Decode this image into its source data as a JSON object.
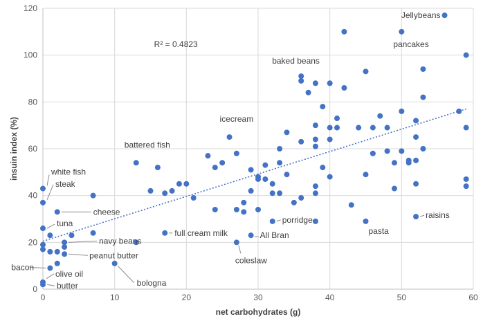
{
  "chart_data": {
    "type": "scatter",
    "xlabel": "net carbohydrates (g)",
    "ylabel": "insuin index (%)",
    "xlim": [
      0,
      60
    ],
    "ylim": [
      0,
      120
    ],
    "x_ticks": [
      "0",
      "10",
      "20",
      "30",
      "40",
      "50",
      "60"
    ],
    "y_ticks": [
      "0",
      "20",
      "40",
      "60",
      "80",
      "100",
      "120"
    ],
    "grid": "horizontal and vertical",
    "legend": "none",
    "marker_color": "#4472c4",
    "trendline": {
      "type": "linear",
      "color": "#4472c4",
      "x_range": [
        0,
        59
      ],
      "y_start": 20.5,
      "y_end": 77,
      "r_squared_label": "R² = 0.4823"
    },
    "points": [
      {
        "x": 56,
        "y": 117,
        "label": "Jellybeans"
      },
      {
        "x": 42,
        "y": 110
      },
      {
        "x": 50,
        "y": 110,
        "label": "pancakes"
      },
      {
        "x": 59,
        "y": 100
      },
      {
        "x": 53,
        "y": 94
      },
      {
        "x": 45,
        "y": 93
      },
      {
        "x": 36,
        "y": 91,
        "label": "baked beans"
      },
      {
        "x": 36,
        "y": 89
      },
      {
        "x": 38,
        "y": 88
      },
      {
        "x": 40,
        "y": 88
      },
      {
        "x": 42,
        "y": 86
      },
      {
        "x": 37,
        "y": 84
      },
      {
        "x": 53,
        "y": 82
      },
      {
        "x": 39,
        "y": 78
      },
      {
        "x": 50,
        "y": 76
      },
      {
        "x": 58,
        "y": 76
      },
      {
        "x": 47,
        "y": 74
      },
      {
        "x": 41,
        "y": 73
      },
      {
        "x": 52,
        "y": 72
      },
      {
        "x": 38,
        "y": 70
      },
      {
        "x": 40,
        "y": 69
      },
      {
        "x": 41,
        "y": 69
      },
      {
        "x": 44,
        "y": 69
      },
      {
        "x": 46,
        "y": 69
      },
      {
        "x": 48,
        "y": 69
      },
      {
        "x": 59,
        "y": 69
      },
      {
        "x": 34,
        "y": 67
      },
      {
        "x": 26,
        "y": 65,
        "label": "icecream"
      },
      {
        "x": 52,
        "y": 65
      },
      {
        "x": 38,
        "y": 64
      },
      {
        "x": 40,
        "y": 64
      },
      {
        "x": 36,
        "y": 63
      },
      {
        "x": 38,
        "y": 61
      },
      {
        "x": 33,
        "y": 60
      },
      {
        "x": 53,
        "y": 60
      },
      {
        "x": 48,
        "y": 59
      },
      {
        "x": 50,
        "y": 59
      },
      {
        "x": 27,
        "y": 58
      },
      {
        "x": 46,
        "y": 58
      },
      {
        "x": 23,
        "y": 57
      },
      {
        "x": 49,
        "y": 54
      },
      {
        "x": 51,
        "y": 55
      },
      {
        "x": 52,
        "y": 55
      },
      {
        "x": 51,
        "y": 54
      },
      {
        "x": 13,
        "y": 54,
        "label": "battered fish"
      },
      {
        "x": 25,
        "y": 54
      },
      {
        "x": 33,
        "y": 54
      },
      {
        "x": 31,
        "y": 53
      },
      {
        "x": 16,
        "y": 52
      },
      {
        "x": 24,
        "y": 52
      },
      {
        "x": 39,
        "y": 52
      },
      {
        "x": 29,
        "y": 51
      },
      {
        "x": 34,
        "y": 49
      },
      {
        "x": 45,
        "y": 49
      },
      {
        "x": 30,
        "y": 48
      },
      {
        "x": 40,
        "y": 48
      },
      {
        "x": 30,
        "y": 47
      },
      {
        "x": 31,
        "y": 47
      },
      {
        "x": 59,
        "y": 47
      },
      {
        "x": 19,
        "y": 45
      },
      {
        "x": 20,
        "y": 45
      },
      {
        "x": 32,
        "y": 45
      },
      {
        "x": 52,
        "y": 45
      },
      {
        "x": 38,
        "y": 44
      },
      {
        "x": 59,
        "y": 44
      },
      {
        "x": 0,
        "y": 43,
        "label": "white fish"
      },
      {
        "x": 49,
        "y": 43
      },
      {
        "x": 15,
        "y": 42
      },
      {
        "x": 18,
        "y": 42
      },
      {
        "x": 29,
        "y": 42
      },
      {
        "x": 17,
        "y": 41
      },
      {
        "x": 32,
        "y": 41
      },
      {
        "x": 33,
        "y": 41
      },
      {
        "x": 38,
        "y": 41
      },
      {
        "x": 7,
        "y": 40
      },
      {
        "x": 21,
        "y": 39
      },
      {
        "x": 36,
        "y": 39
      },
      {
        "x": 0,
        "y": 37,
        "label": "steak"
      },
      {
        "x": 28,
        "y": 37
      },
      {
        "x": 35,
        "y": 37
      },
      {
        "x": 43,
        "y": 36
      },
      {
        "x": 24,
        "y": 34
      },
      {
        "x": 27,
        "y": 34
      },
      {
        "x": 30,
        "y": 34
      },
      {
        "x": 2,
        "y": 33,
        "label": "cheese"
      },
      {
        "x": 28,
        "y": 33
      },
      {
        "x": 52,
        "y": 31,
        "label": "raisins"
      },
      {
        "x": 32,
        "y": 29,
        "label": "porridge"
      },
      {
        "x": 38,
        "y": 29
      },
      {
        "x": 45,
        "y": 29,
        "label": "pasta"
      },
      {
        "x": 0,
        "y": 26,
        "label": "tuna"
      },
      {
        "x": 7,
        "y": 24
      },
      {
        "x": 17,
        "y": 24,
        "label": "full cream milk"
      },
      {
        "x": 1,
        "y": 23
      },
      {
        "x": 4,
        "y": 23
      },
      {
        "x": 29,
        "y": 23,
        "label": "All Bran"
      },
      {
        "x": 3,
        "y": 20,
        "label": "navy beans"
      },
      {
        "x": 13,
        "y": 20
      },
      {
        "x": 27,
        "y": 20,
        "label": "coleslaw"
      },
      {
        "x": 0,
        "y": 19
      },
      {
        "x": 3,
        "y": 18
      },
      {
        "x": 0,
        "y": 17
      },
      {
        "x": 1,
        "y": 16
      },
      {
        "x": 2,
        "y": 16
      },
      {
        "x": 3,
        "y": 15,
        "label": "peanut butter"
      },
      {
        "x": 10,
        "y": 11,
        "label": "bologna"
      },
      {
        "x": 2,
        "y": 11
      },
      {
        "x": 1,
        "y": 9,
        "label": "bacon"
      },
      {
        "x": 0,
        "y": 3,
        "label": "olive oil"
      },
      {
        "x": 0,
        "y": 2,
        "label": "butter"
      }
    ]
  }
}
